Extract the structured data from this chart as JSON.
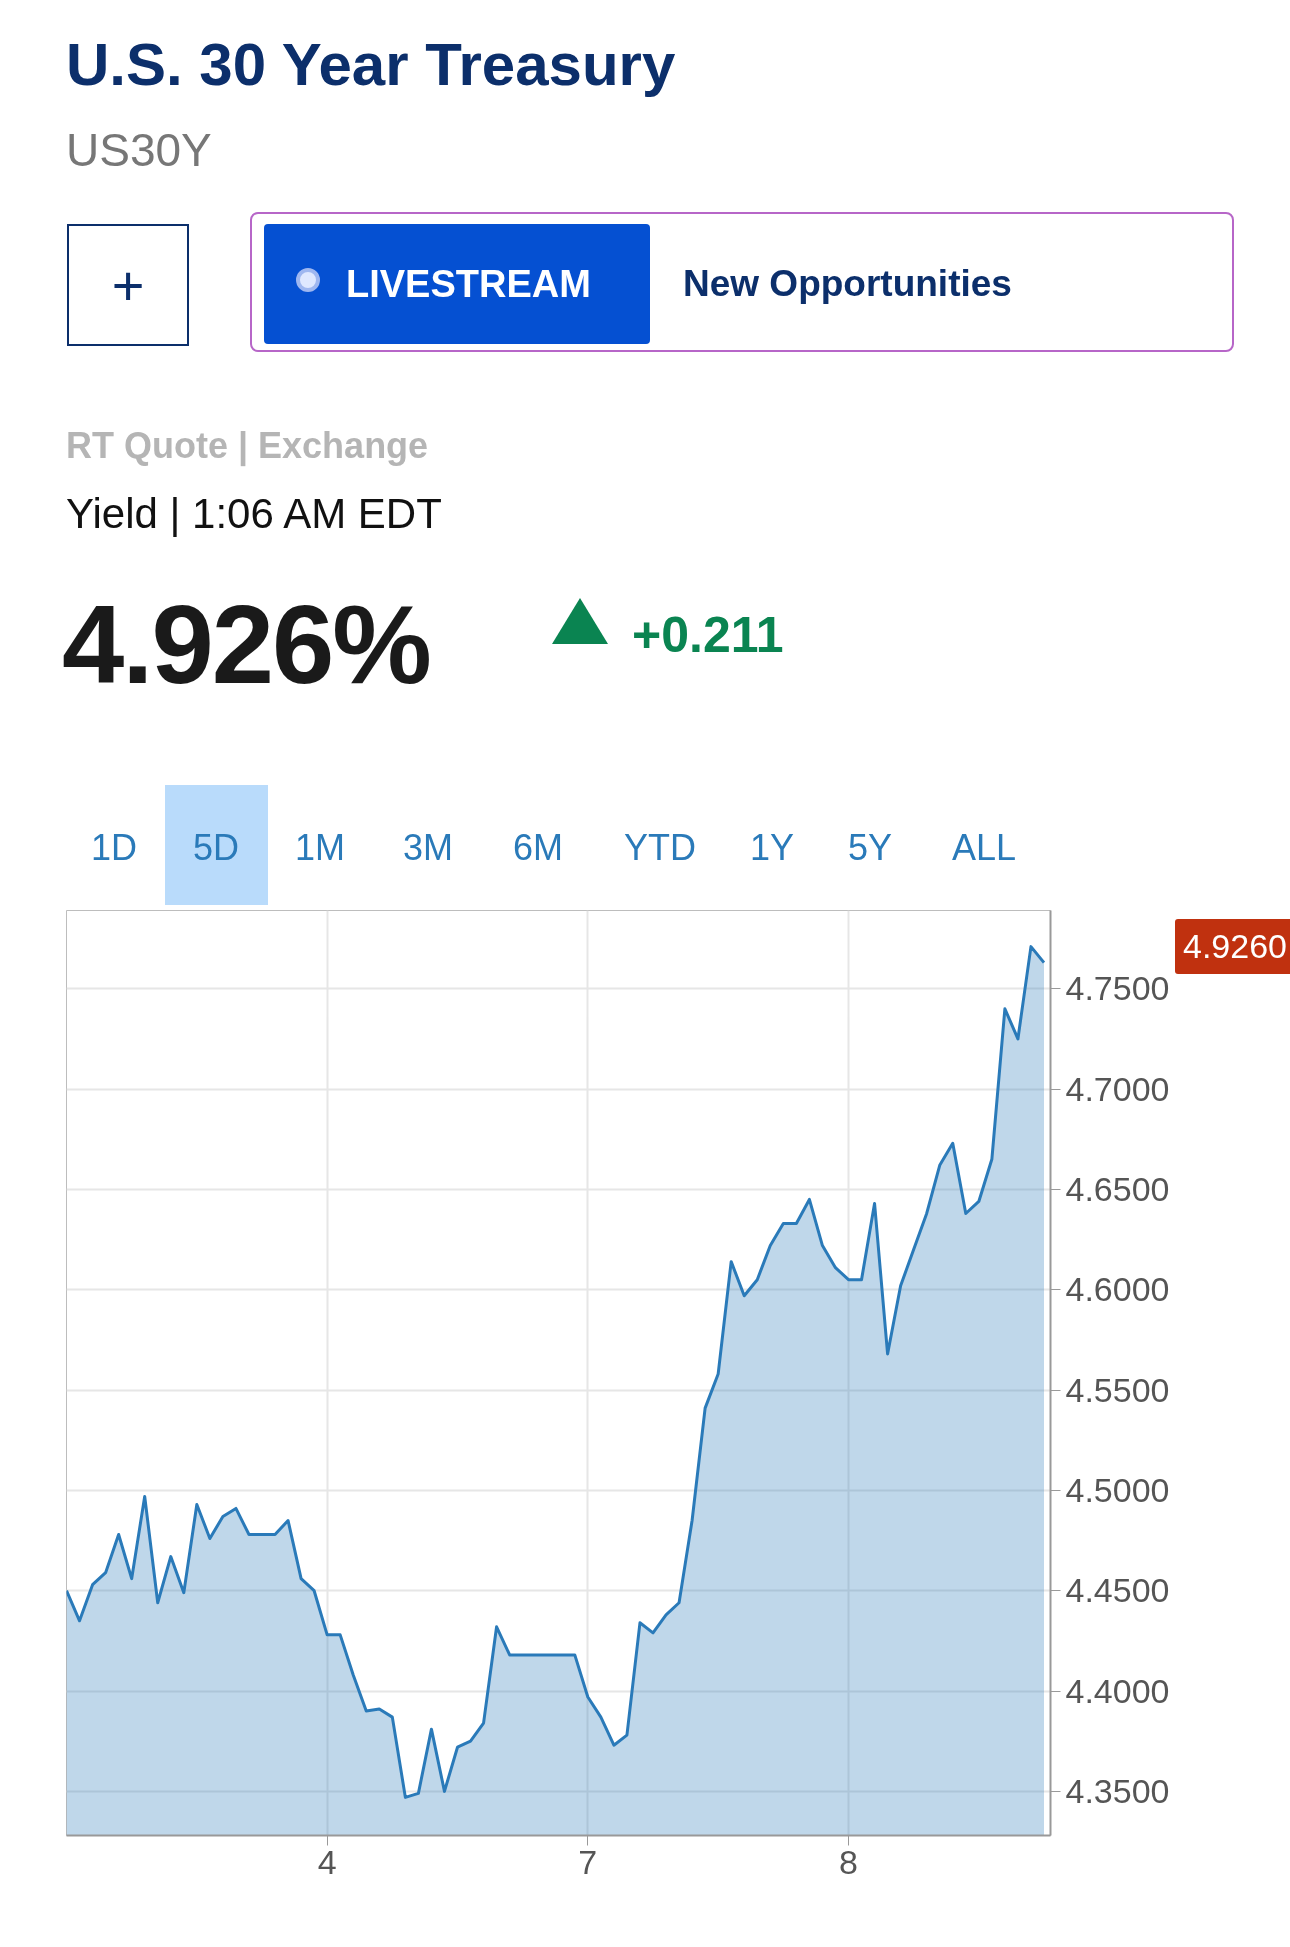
{
  "chart_data": {
    "type": "area",
    "title": "U.S. 30 Year Treasury",
    "subtitle": "US30Y",
    "annotations": [
      "+",
      "LIVESTREAM",
      "New Opportunities",
      "RT Quote | Exchange",
      "Yield | 1:06 AM EDT",
      "4.926%",
      "+0.211",
      "1D",
      "5D",
      "1M",
      "3M",
      "6M",
      "YTD",
      "1Y",
      "5Y",
      "ALL",
      "4.9260"
    ],
    "categories": [
      null,
      null,
      null,
      null,
      null,
      null,
      null,
      null,
      null,
      null,
      null,
      null,
      null,
      null,
      null,
      null,
      null,
      null,
      null,
      null,
      "4",
      null,
      null,
      null,
      null,
      null,
      null,
      null,
      null,
      null,
      null,
      null,
      null,
      null,
      null,
      null,
      null,
      null,
      null,
      null,
      "7",
      null,
      null,
      null,
      null,
      null,
      null,
      null,
      null,
      null,
      null,
      null,
      null,
      null,
      null,
      null,
      null,
      null,
      null,
      null,
      "8",
      null,
      null,
      null,
      null,
      null,
      null,
      null,
      null,
      null,
      null,
      null,
      null,
      null,
      null,
      null
    ],
    "series": [
      {
        "color": "#2a7ab9",
        "values": [
          4.45,
          4.435,
          4.453,
          4.459,
          4.478,
          4.456,
          4.497,
          4.444,
          4.467,
          4.449,
          4.493,
          4.476,
          4.487,
          4.491,
          4.478,
          4.478,
          4.478,
          4.485,
          4.456,
          4.45,
          4.428,
          4.428,
          4.408,
          4.39,
          4.391,
          4.387,
          4.347,
          4.349,
          4.381,
          4.35,
          4.372,
          4.375,
          4.384,
          4.432,
          4.418,
          4.418,
          4.418,
          4.418,
          4.418,
          4.418,
          4.397,
          4.387,
          4.373,
          4.378,
          4.434,
          4.429,
          4.438,
          4.444,
          4.485,
          4.541,
          4.558,
          4.614,
          4.597,
          4.605,
          4.622,
          4.633,
          4.633,
          4.645,
          4.622,
          4.611,
          4.605,
          4.605,
          4.643,
          4.568,
          4.602,
          4.62,
          4.638,
          4.662,
          4.673,
          4.638,
          4.644,
          4.665,
          4.74,
          4.725,
          4.771,
          4.763
        ]
      }
    ],
    "ylim": [
      4.328,
      4.789
    ],
    "yticks": [
      {
        "value": 4.35,
        "label": "4.3500"
      },
      {
        "value": 4.4,
        "label": "4.4000"
      },
      {
        "value": 4.45,
        "label": "4.4500"
      },
      {
        "value": 4.5,
        "label": "4.5000"
      },
      {
        "value": 4.55,
        "label": "4.5500"
      },
      {
        "value": 4.6,
        "label": "4.6000"
      },
      {
        "value": 4.65,
        "label": "4.6500"
      },
      {
        "value": 4.7,
        "label": "4.7000"
      },
      {
        "value": 4.75,
        "label": "4.7500"
      }
    ],
    "grid": true
  }
}
